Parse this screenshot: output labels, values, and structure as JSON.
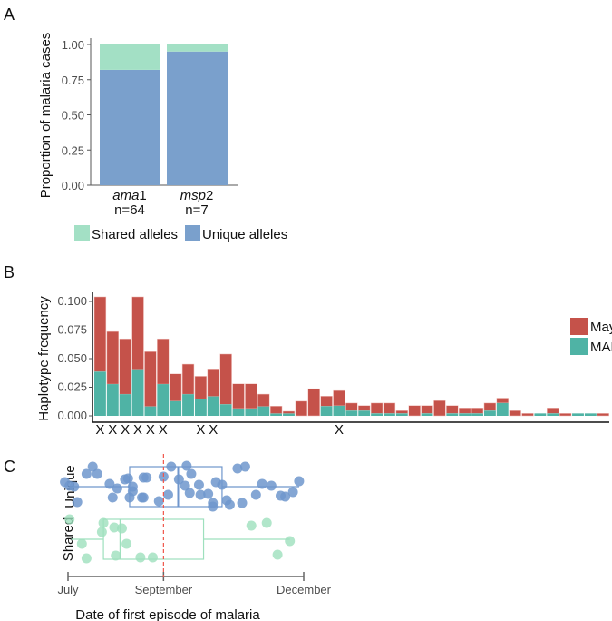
{
  "chart_data": [
    {
      "panel": "A",
      "type": "bar",
      "stacked": true,
      "ylabel": "Proportion of malaria cases",
      "ylim": [
        0,
        1
      ],
      "yticks": [
        "0.00",
        "0.25",
        "0.50",
        "0.75",
        "1.00"
      ],
      "categories": [
        {
          "gene": "ama",
          "suffix": "1",
          "n": "n=64"
        },
        {
          "gene": "msp",
          "suffix": "2",
          "n": "n=7"
        }
      ],
      "series": [
        {
          "name": "Unique alleles",
          "color": "#7aa0cc",
          "values": [
            0.82,
            0.95
          ]
        },
        {
          "name": "Shared alleles",
          "color": "#a3e0c5",
          "values": [
            0.18,
            0.05
          ]
        }
      ],
      "legend": [
        "Shared alleles",
        "Unique alleles"
      ],
      "legend_position": "bottom"
    },
    {
      "panel": "B",
      "type": "bar",
      "stacked": true,
      "ylabel": "Haplotype frequency",
      "ylim": [
        0,
        0.1
      ],
      "yticks": [
        "0.000",
        "0.025",
        "0.050",
        "0.075",
        "0.100"
      ],
      "legend_position": "right",
      "marker_label": "X",
      "markers": [
        1,
        2,
        3,
        4,
        5,
        6,
        9,
        10,
        20
      ],
      "series": [
        {
          "name": "May",
          "color": "#c5524a"
        },
        {
          "name": "MAL",
          "color": "#4fb3a5"
        }
      ],
      "totals": [
        0.104,
        0.0737,
        0.0673,
        0.104,
        0.0561,
        0.0673,
        0.0367,
        0.0452,
        0.0346,
        0.041,
        0.054,
        0.028,
        0.028,
        0.019,
        0.0085,
        0.004,
        0.0128,
        0.0237,
        0.0172,
        0.0221,
        0.0112,
        0.009,
        0.0112,
        0.0112,
        0.0045,
        0.009,
        0.009,
        0.0133,
        0.009,
        0.0069,
        0.0069,
        0.0112,
        0.0155,
        0.0045,
        0.0021,
        0.0021,
        0.0069,
        0.0021,
        0.0021,
        0.0021,
        0.0021
      ],
      "mal": [
        0.0386,
        0.0277,
        0.0189,
        0.0407,
        0.0082,
        0.0277,
        0.0128,
        0.0189,
        0.0149,
        0.017,
        0.0101,
        0.0064,
        0.0064,
        0.0082,
        0.002,
        0.002,
        0,
        0,
        0.0085,
        0.0088,
        0.0045,
        0.0045,
        0.0021,
        0.0021,
        0.0021,
        0,
        0.0021,
        0,
        0.0021,
        0.0021,
        0.0021,
        0.0045,
        0.0112,
        0,
        0,
        0.0021,
        0.0021,
        0,
        0.0021,
        0.0021,
        0
      ]
    },
    {
      "panel": "C",
      "type": "box+scatter",
      "xlabel": "Date of first episode of malaria",
      "x_units": "days since July 1",
      "xticks": [
        {
          "label": "July",
          "value": 0
        },
        {
          "label": "September",
          "value": 62
        },
        {
          "label": "December",
          "value": 153
        }
      ],
      "reference_line": {
        "value": 62,
        "color": "#f0554a",
        "style": "dashed"
      },
      "groups": [
        {
          "name": "Unique",
          "color": "#6f96cc",
          "box": {
            "whisker_low": 3,
            "q1": 40,
            "median": 71.5,
            "q3": 100,
            "whisker_high": 150
          },
          "points": [
            -2,
            1,
            4,
            6,
            12,
            16,
            19,
            27,
            29,
            32,
            37,
            39,
            40,
            42,
            42,
            48,
            49,
            51,
            49,
            59,
            62,
            65,
            67,
            72,
            76,
            77,
            79,
            80,
            85,
            86,
            91,
            94,
            94,
            96,
            100,
            103,
            105,
            110,
            113,
            115,
            122,
            126,
            132,
            138,
            141,
            146,
            150
          ]
        },
        {
          "name": "Shared",
          "color": "#9ee0bd",
          "box": {
            "whisker_low": 2,
            "q1": 23,
            "median": 34,
            "q3": 88,
            "whisker_high": 144
          },
          "points": [
            1,
            9,
            12,
            22,
            23,
            30,
            31,
            35,
            38,
            47,
            55,
            119,
            129,
            136,
            144
          ]
        }
      ]
    }
  ],
  "panels": {
    "a": "A",
    "b": "B",
    "c": "C"
  }
}
